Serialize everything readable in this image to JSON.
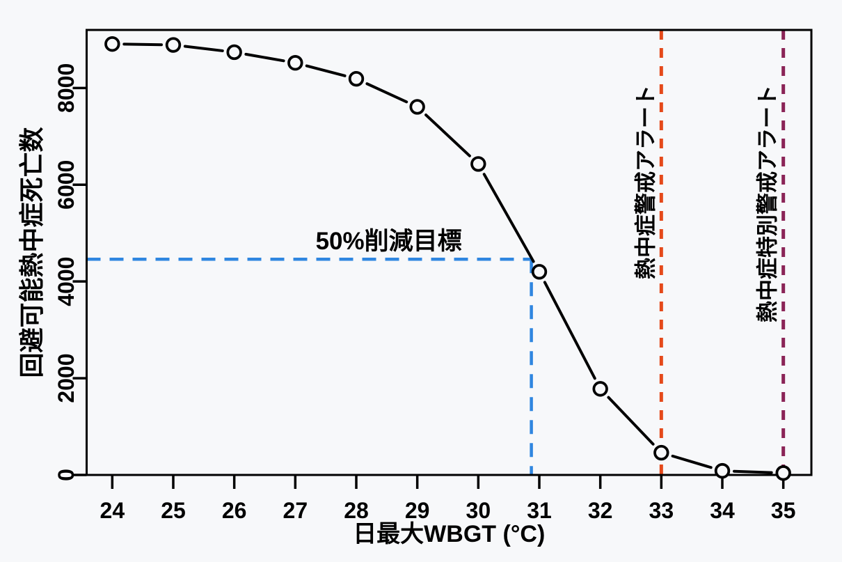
{
  "colors": {
    "background": "#F7F8FA",
    "curve": "#000000",
    "frame": "#000000",
    "target_blue": "#2F86E0",
    "alert_orange": "#E5491A",
    "alert_purple": "#8B2457"
  },
  "chart_data": {
    "type": "line",
    "marker": "open-circle",
    "grid": false,
    "x": [
      24,
      25,
      26,
      27,
      28,
      29,
      30,
      31,
      32,
      33,
      34,
      35
    ],
    "values": [
      8910,
      8890,
      8740,
      8520,
      8190,
      7610,
      6430,
      4200,
      1780,
      460,
      85,
      40
    ],
    "xlabel": "日最大WBGT (°C)",
    "ylabel": "回避可能熱中症死亡数",
    "x_ticks": [
      24,
      25,
      26,
      27,
      28,
      29,
      30,
      31,
      32,
      33,
      34,
      35
    ],
    "y_ticks": [
      0,
      2000,
      4000,
      6000,
      8000
    ],
    "xlim": [
      23.58,
      35.46
    ],
    "ylim": [
      0,
      9200
    ],
    "annotations": {
      "reduction_target": {
        "label": "50%削減目標",
        "y_value": 4460,
        "x_intersect": 30.87,
        "color": "#2F86E0",
        "style": "dashed"
      },
      "alerts": [
        {
          "label": "熱中症警戒アラート",
          "x_value": 33,
          "color": "#E5491A",
          "style": "dashed"
        },
        {
          "label": "熱中症特別警戒アラート",
          "x_value": 35,
          "color": "#8B2457",
          "style": "dashed"
        }
      ]
    }
  }
}
